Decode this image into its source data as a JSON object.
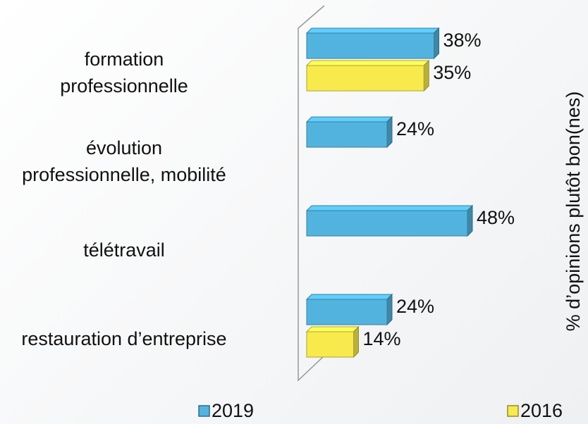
{
  "chart_data": {
    "type": "bar3d_horizontal",
    "categories": [
      "formation\nprofessionnelle",
      "évolution\nprofessionnelle, mobilité",
      "télétravail",
      "restauration d’entreprise"
    ],
    "series": [
      {
        "name": "2019",
        "color": "#52b4de",
        "values": [
          38,
          24,
          48,
          24
        ],
        "value_labels": [
          "38%",
          "24%",
          "48%",
          "24%"
        ]
      },
      {
        "name": "2016",
        "color": "#f8ea4c",
        "values": [
          35,
          null,
          null,
          14
        ],
        "value_labels": [
          "35%",
          null,
          null,
          "14%"
        ]
      }
    ],
    "xlim": [
      0,
      100
    ],
    "axis_label": "% d’opinions plutôt bon(nes)"
  }
}
